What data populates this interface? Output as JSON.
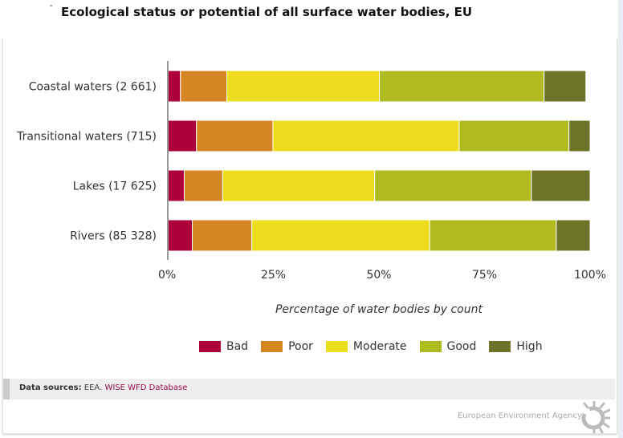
{
  "title": "Ecological status or potential of all surface water bodies, EU",
  "chart_data": {
    "type": "bar",
    "orientation": "horizontal",
    "stacked": true,
    "title": "Ecological status or potential of all surface water bodies, EU",
    "categories": [
      "Coastal waters (2 661)",
      "Transitional waters (715)",
      "Lakes (17 625)",
      "Rivers (85 328)"
    ],
    "series": [
      {
        "name": "Bad",
        "color": "#ad003d",
        "values": [
          3.0,
          6.8,
          3.9,
          5.8
        ]
      },
      {
        "name": "Poor",
        "color": "#d58524",
        "values": [
          11.0,
          18.1,
          9.1,
          14.1
        ]
      },
      {
        "name": "Moderate",
        "color": "#eedd1f",
        "values": [
          36.1,
          44.1,
          36.0,
          42.1
        ]
      },
      {
        "name": "Good",
        "color": "#afbb21",
        "values": [
          39.0,
          26.0,
          37.1,
          30.0
        ]
      },
      {
        "name": "High",
        "color": "#6d7428",
        "values": [
          9.9,
          5.0,
          13.9,
          8.0
        ]
      }
    ],
    "xlabel": "Percentage of water bodies by count",
    "ylabel": "",
    "xlim": [
      0,
      100
    ],
    "xticks": [
      "0%",
      "25%",
      "50%",
      "75%",
      "100%"
    ],
    "legend": "bottom",
    "grid": false
  },
  "footer": {
    "label": "Data sources:",
    "org": "EEA.",
    "link": "WISE WFD Database",
    "agency": "European Environment Agency"
  }
}
